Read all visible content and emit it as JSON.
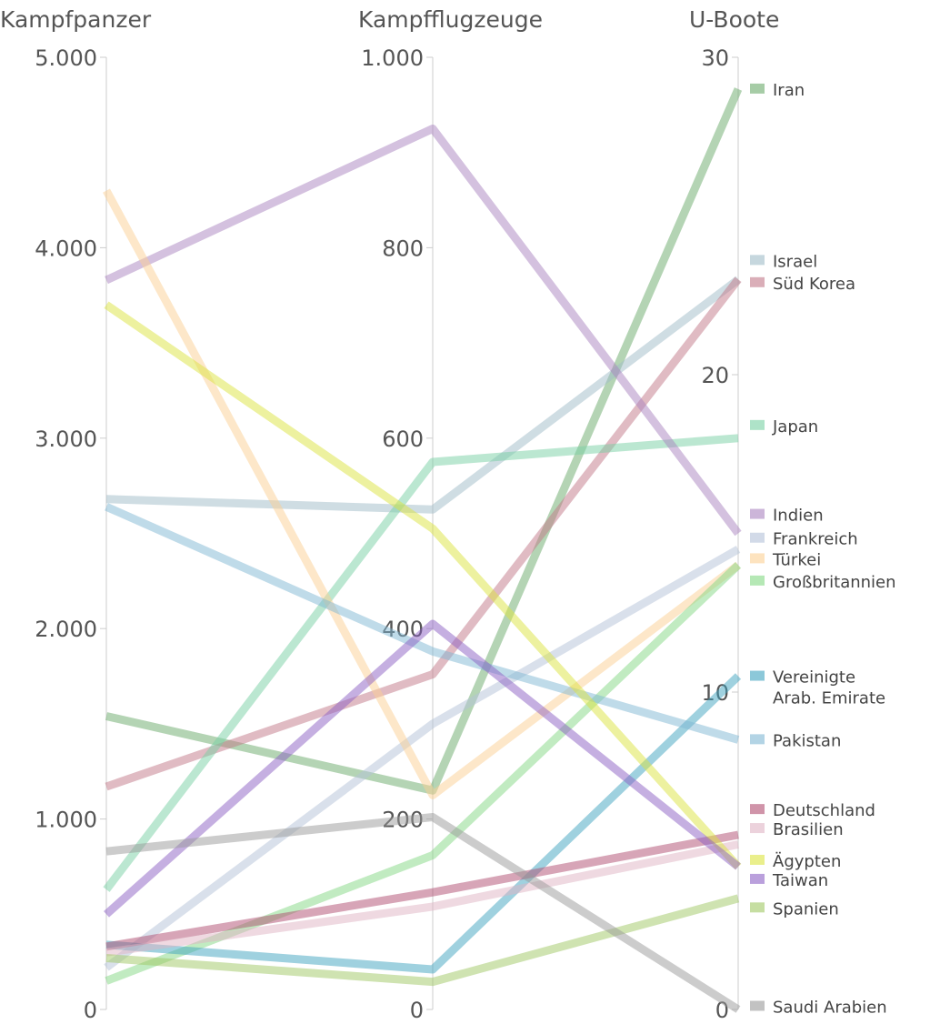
{
  "chart_data": {
    "type": "line",
    "variant": "parallel-coordinates",
    "axes": [
      {
        "name": "Kampfpanzer",
        "range": [
          0,
          5000
        ],
        "ticks": [
          0,
          1000,
          2000,
          3000,
          4000,
          5000
        ],
        "tick_labels": [
          "0",
          "1.000",
          "2.000",
          "3.000",
          "4.000",
          "5.000"
        ]
      },
      {
        "name": "Kampfflugzeuge",
        "range": [
          0,
          1000
        ],
        "ticks": [
          0,
          200,
          400,
          600,
          800,
          1000
        ],
        "tick_labels": [
          "0",
          "200",
          "400",
          "600",
          "800",
          "1.000"
        ]
      },
      {
        "name": "U-Boote",
        "range": [
          0,
          30
        ],
        "ticks": [
          0,
          10,
          20,
          30
        ],
        "tick_labels": [
          "0",
          "10",
          "20",
          "30"
        ]
      }
    ],
    "legend_position": "right",
    "series": [
      {
        "name": "Iran",
        "values": [
          1540,
          230,
          29
        ],
        "color": "#6aaa6a"
      },
      {
        "name": "Israel",
        "values": [
          2680,
          525,
          23
        ],
        "color": "#a0bcc8"
      },
      {
        "name": "Süd Korea",
        "values": [
          1170,
          352,
          23
        ],
        "color": "#c27888"
      },
      {
        "name": "Japan",
        "values": [
          630,
          575,
          18
        ],
        "color": "#78d0a4"
      },
      {
        "name": "Indien",
        "values": [
          3830,
          925,
          15
        ],
        "color": "#aa84c0"
      },
      {
        "name": "Frankreich",
        "values": [
          220,
          300,
          14.5
        ],
        "color": "#b4c2d8"
      },
      {
        "name": "Türkei",
        "values": [
          4300,
          225,
          14
        ],
        "color": "#fcd094"
      },
      {
        "name": "Großbritannien",
        "values": [
          150,
          162,
          14
        ],
        "color": "#84d884"
      },
      {
        "name": "Vereinigte Arab. Emirate",
        "values": [
          340,
          42,
          10.5
        ],
        "color": "#40a4c0"
      },
      {
        "name": "Pakistan",
        "values": [
          2640,
          376,
          8.5
        ],
        "color": "#80b8d4"
      },
      {
        "name": "Deutschland",
        "values": [
          330,
          123,
          5.5
        ],
        "color": "#b04c70"
      },
      {
        "name": "Brasilien",
        "values": [
          300,
          108,
          5.2
        ],
        "color": "#e0b4c4"
      },
      {
        "name": "Ägypten",
        "values": [
          3700,
          505,
          4.5
        ],
        "color": "#dce440"
      },
      {
        "name": "Taiwan",
        "values": [
          500,
          405,
          4.5
        ],
        "color": "#8c60c4"
      },
      {
        "name": "Spanien",
        "values": [
          270,
          29,
          3.5
        ],
        "color": "#a0c864"
      },
      {
        "name": "Saudi Arabien",
        "values": [
          830,
          202,
          0
        ],
        "color": "#999999"
      }
    ],
    "legend": [
      {
        "lines": [
          "Iran"
        ],
        "value": 29
      },
      {
        "lines": [
          "Israel"
        ],
        "value": 23.6
      },
      {
        "lines": [
          "Süd Korea"
        ],
        "value": 22.9
      },
      {
        "lines": [
          "Japan"
        ],
        "value": 18.4
      },
      {
        "lines": [
          "Indien"
        ],
        "value": 15.6
      },
      {
        "lines": [
          "Frankreich"
        ],
        "value": 14.85
      },
      {
        "lines": [
          "Türkei"
        ],
        "value": 14.2
      },
      {
        "lines": [
          "Großbritannien"
        ],
        "value": 13.5
      },
      {
        "lines": [
          "Vereinigte",
          "Arab. Emirate"
        ],
        "value": 10.5
      },
      {
        "lines": [
          "Pakistan"
        ],
        "value": 8.5
      },
      {
        "lines": [
          "Deutschland"
        ],
        "value": 6.3
      },
      {
        "lines": [
          "Brasilien"
        ],
        "value": 5.7
      },
      {
        "lines": [
          "Ägypten"
        ],
        "value": 4.7
      },
      {
        "lines": [
          "Taiwan"
        ],
        "value": 4.1
      },
      {
        "lines": [
          "Spanien"
        ],
        "value": 3.2
      },
      {
        "lines": [
          "Saudi Arabien"
        ],
        "value": 0.1
      }
    ]
  }
}
